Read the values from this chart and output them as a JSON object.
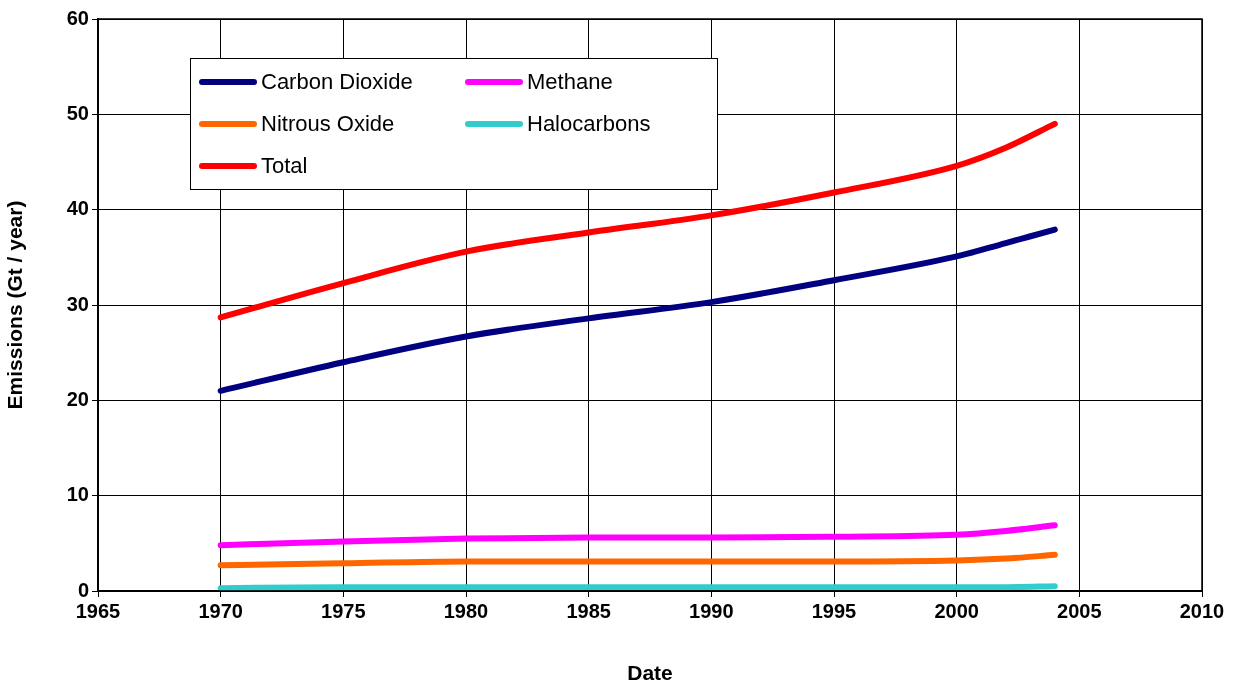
{
  "chart_data": {
    "type": "line",
    "xlabel": "Date",
    "ylabel": "Emissions (Gt / year)",
    "x": [
      1970,
      1975,
      1980,
      1985,
      1990,
      1995,
      2000,
      2002,
      2004
    ],
    "series": [
      {
        "name": "Carbon Dioxide",
        "color": "#000080",
        "values": [
          21.0,
          24.0,
          26.7,
          28.6,
          30.3,
          32.6,
          35.1,
          36.5,
          37.9
        ]
      },
      {
        "name": "Methane",
        "color": "#ff00ff",
        "values": [
          4.8,
          5.2,
          5.5,
          5.6,
          5.6,
          5.7,
          5.9,
          6.3,
          6.9
        ]
      },
      {
        "name": "Nitrous Oxide",
        "color": "#ff6600",
        "values": [
          2.7,
          2.9,
          3.1,
          3.1,
          3.1,
          3.1,
          3.2,
          3.4,
          3.8
        ]
      },
      {
        "name": "Halocarbons",
        "color": "#33cccc",
        "values": [
          0.3,
          0.4,
          0.4,
          0.4,
          0.4,
          0.4,
          0.4,
          0.4,
          0.5
        ]
      },
      {
        "name": "Total",
        "color": "#ff0000",
        "values": [
          28.7,
          32.3,
          35.6,
          37.6,
          39.4,
          41.8,
          44.6,
          46.5,
          49.0
        ]
      }
    ],
    "xlim": [
      1965,
      2010
    ],
    "xticks": [
      1965,
      1970,
      1975,
      1980,
      1985,
      1990,
      1995,
      2000,
      2005,
      2010
    ],
    "ylim": [
      0,
      60
    ],
    "yticks": [
      0,
      10,
      20,
      30,
      40,
      50,
      60
    ],
    "grid": true,
    "legend": "top left",
    "marker": "none",
    "line_style": "solid"
  }
}
